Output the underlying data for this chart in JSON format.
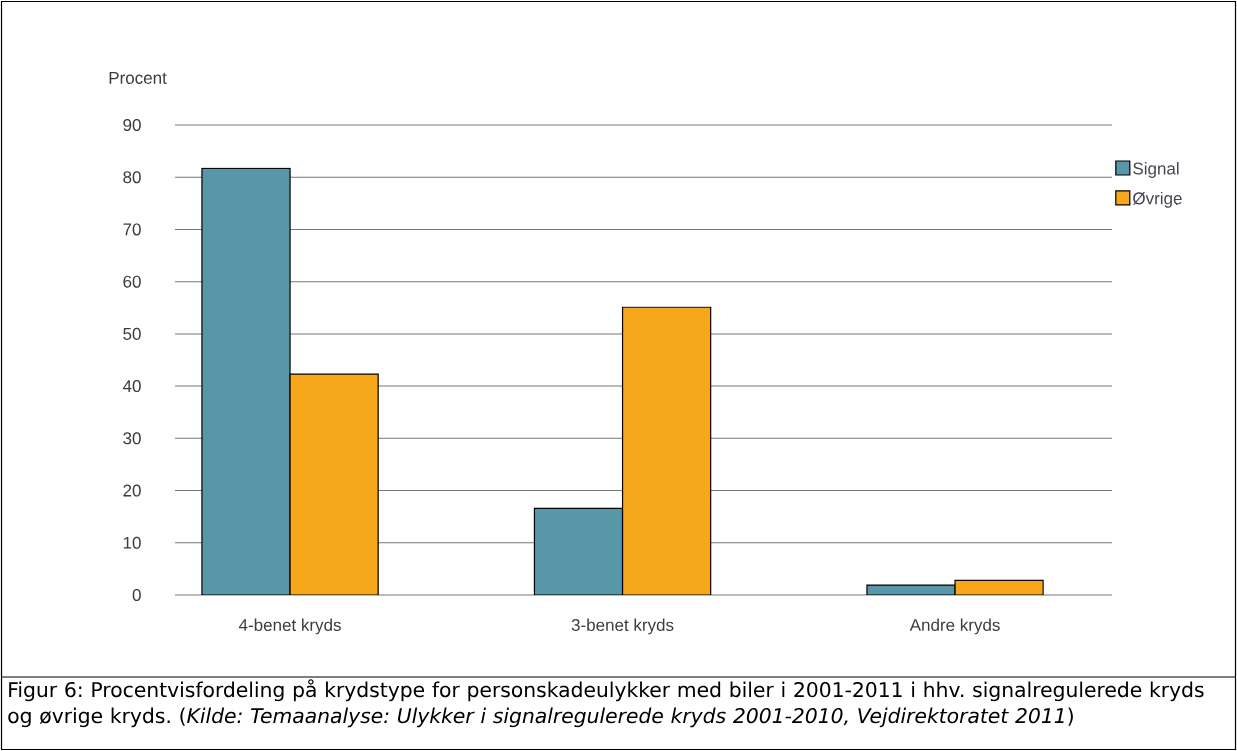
{
  "chart_data": {
    "type": "bar",
    "ylabel": "Procent",
    "categories": [
      "4-benet kryds",
      "3-benet kryds",
      "Andre kryds"
    ],
    "series": [
      {
        "name": "Signal",
        "color": "#5797a8",
        "values": [
          81.7,
          16.6,
          1.9
        ]
      },
      {
        "name": "Øvrige",
        "color": "#f7a71c",
        "values": [
          42.3,
          55.1,
          2.8
        ]
      }
    ],
    "ylim": [
      0,
      90
    ],
    "yticks": [
      0,
      10,
      20,
      30,
      40,
      50,
      60,
      70,
      80,
      90
    ],
    "grid": "y",
    "legend": "top right",
    "annotations": [
      "Figur 6: Procentvisfordeling på krydstype for personskadeulykker med biler i 2001-2011 i hhv. signalregulerede kryds og øvrige kryds. (*Kilde: Temaanalyse: Ulykker i signalregulerede kryds 2001-2010, Vejdirektoratet 2011*)"
    ]
  }
}
